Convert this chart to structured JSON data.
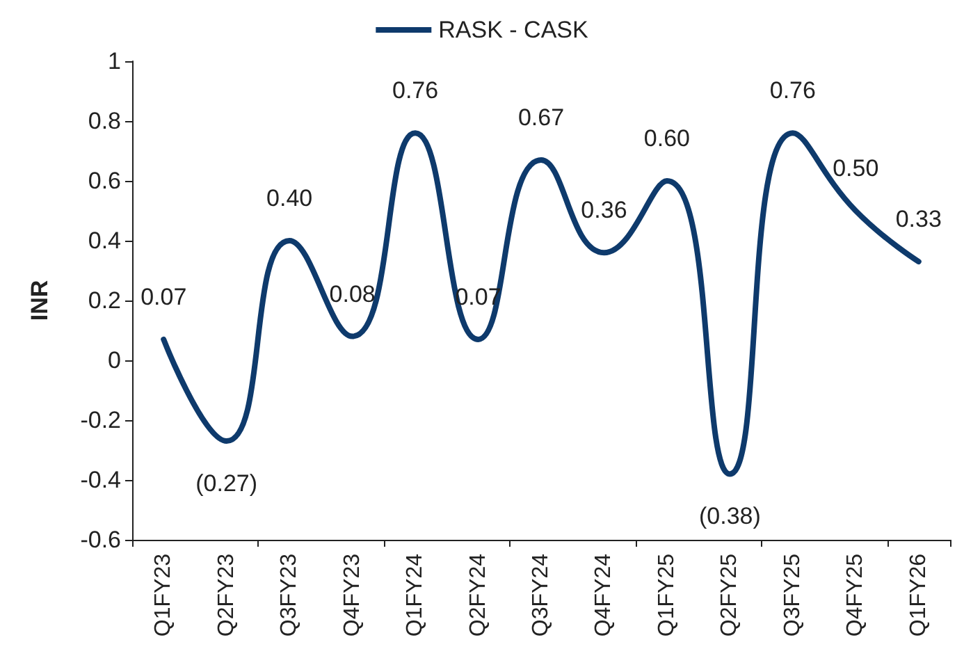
{
  "chart_data": {
    "type": "line",
    "ylabel": "INR",
    "legend": "top",
    "categories": [
      "Q1FY23",
      "Q2FY23",
      "Q3FY23",
      "Q4FY23",
      "Q1FY24",
      "Q2FY24",
      "Q3FY24",
      "Q4FY24",
      "Q1FY25",
      "Q2FY25",
      "Q3FY25",
      "Q4FY25",
      "Q1FY26"
    ],
    "series": [
      {
        "name": "RASK - CASK",
        "color": "#0e3a6c",
        "values": [
          0.07,
          -0.27,
          0.4,
          0.08,
          0.76,
          0.07,
          0.67,
          0.36,
          0.6,
          -0.38,
          0.76,
          0.5,
          0.33
        ],
        "value_labels": [
          "0.07",
          "(0.27)",
          "0.40",
          "0.08",
          "0.76",
          "0.07",
          "0.67",
          "0.36",
          "0.60",
          "(0.38)",
          "0.76",
          "0.50",
          "0.33"
        ]
      }
    ],
    "ylim": [
      -0.6,
      1
    ],
    "yticks": [
      {
        "value": -0.6,
        "label": "-0.6"
      },
      {
        "value": -0.4,
        "label": "-0.4"
      },
      {
        "value": -0.2,
        "label": "-0.2"
      },
      {
        "value": 0,
        "label": "0"
      },
      {
        "value": 0.2,
        "label": "0.2"
      },
      {
        "value": 0.4,
        "label": "0.4"
      },
      {
        "value": 0.6,
        "label": "0.6"
      },
      {
        "value": 0.8,
        "label": "0.8"
      },
      {
        "value": 1,
        "label": "1"
      }
    ],
    "grid": false,
    "marker": "none",
    "line_style": "solid"
  }
}
